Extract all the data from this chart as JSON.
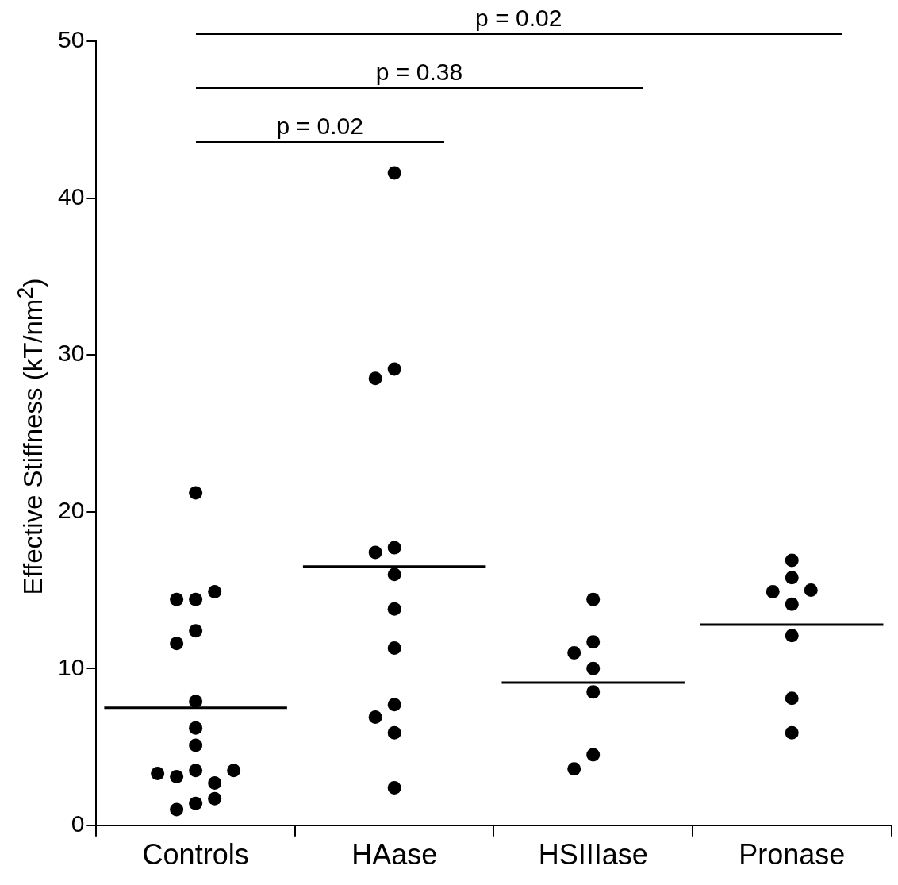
{
  "chart_data": {
    "type": "scatter",
    "ylabel": "Effective Stiffness (kT/nm$^{2}$)",
    "categories": [
      "Controls",
      "HAase",
      "HSIIIase",
      "Pronase"
    ],
    "ylim": [
      0,
      50
    ],
    "yticks": [
      0,
      10,
      20,
      30,
      40,
      50
    ],
    "grid": false,
    "legend": false,
    "marker": "circle",
    "series": [
      {
        "color": "#000000",
        "x": [
          "Controls",
          "Controls",
          "Controls",
          "Controls",
          "Controls",
          "Controls",
          "Controls",
          "Controls",
          "Controls",
          "Controls",
          "Controls",
          "Controls",
          "Controls",
          "Controls",
          "Controls",
          "Controls",
          "Controls"
        ],
        "values": [
          21.2,
          14.4,
          14.4,
          14.9,
          12.4,
          11.6,
          7.9,
          6.2,
          5.1,
          3.5,
          3.1,
          2.7,
          3.3,
          3.5,
          1.4,
          1.0,
          1.7
        ]
      },
      {
        "color": "#000000",
        "x": [
          "HAase",
          "HAase",
          "HAase",
          "HAase",
          "HAase",
          "HAase",
          "HAase",
          "HAase",
          "HAase",
          "HAase",
          "HAase",
          "HAase"
        ],
        "values": [
          41.6,
          29.1,
          28.5,
          17.7,
          17.4,
          16.0,
          13.8,
          11.3,
          7.7,
          6.9,
          5.9,
          2.4
        ]
      },
      {
        "color": "#000000",
        "x": [
          "HSIIIase",
          "HSIIIase",
          "HSIIIase",
          "HSIIIase",
          "HSIIIase",
          "HSIIIase",
          "HSIIIase"
        ],
        "values": [
          14.4,
          11.7,
          11.0,
          10.0,
          8.5,
          4.5,
          3.6
        ]
      },
      {
        "color": "#000000",
        "x": [
          "Pronase",
          "Pronase",
          "Pronase",
          "Pronase",
          "Pronase",
          "Pronase",
          "Pronase",
          "Pronase"
        ],
        "values": [
          16.9,
          15.8,
          14.9,
          15.0,
          14.1,
          12.1,
          8.1,
          5.9
        ]
      }
    ],
    "ref_lines": [
      {
        "axis": "y",
        "value": 7.5,
        "color": "#000000"
      },
      {
        "axis": "y",
        "value": 16.5,
        "color": "#000000"
      },
      {
        "axis": "y",
        "value": 9.1,
        "color": "#000000"
      },
      {
        "axis": "y",
        "value": 12.8,
        "color": "#000000"
      }
    ],
    "annotations": [
      "p = 0.02",
      "p = 0.38",
      "p = 0.02"
    ]
  }
}
